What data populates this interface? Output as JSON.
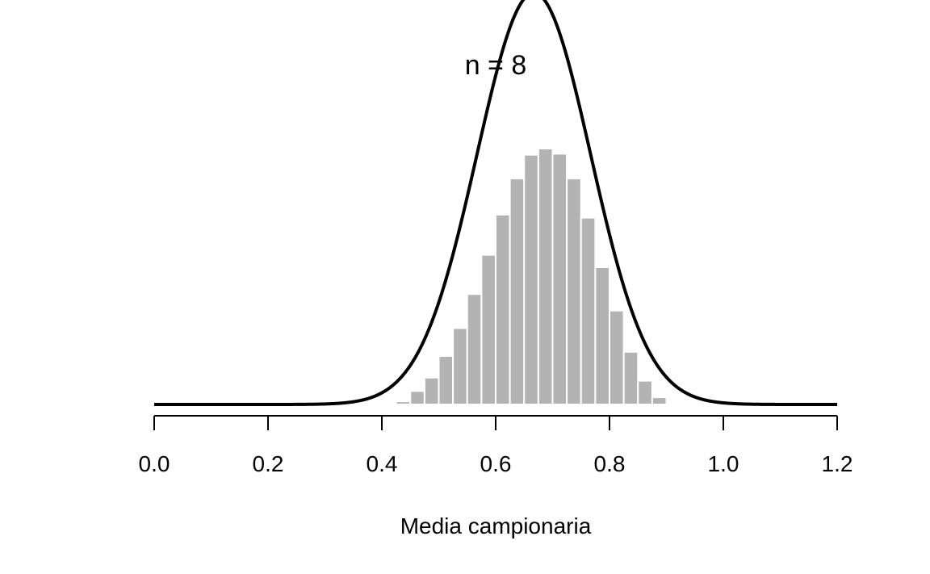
{
  "chart_data": {
    "type": "bar",
    "title": "n = 8",
    "xlabel": "Media campionaria",
    "ylabel": "",
    "xlim": [
      0.0,
      1.2
    ],
    "x_ticks": [
      0.0,
      0.2,
      0.4,
      0.6,
      0.8,
      1.0,
      1.2
    ],
    "x_tick_labels": [
      "0.0",
      "0.2",
      "0.4",
      "0.6",
      "0.8",
      "1.0",
      "1.2"
    ],
    "y_axis_shown": false,
    "grid": false,
    "bin_width": 0.025,
    "bins_start": [
      0.425,
      0.45,
      0.475,
      0.5,
      0.525,
      0.55,
      0.575,
      0.6,
      0.625,
      0.65,
      0.675,
      0.7,
      0.725,
      0.75,
      0.775,
      0.8,
      0.825,
      0.85,
      0.875
    ],
    "density": [
      0.03,
      0.13,
      0.26,
      0.47,
      0.74,
      1.07,
      1.45,
      1.84,
      2.19,
      2.42,
      2.48,
      2.43,
      2.19,
      1.81,
      1.33,
      0.91,
      0.51,
      0.23,
      0.07
    ],
    "curve": {
      "type": "normal-density",
      "mean": 0.667,
      "sd": 0.1
    },
    "bar_color": "#b3b3b3",
    "bar_edge_color": "#ffffff",
    "curve_color": "#000000"
  }
}
